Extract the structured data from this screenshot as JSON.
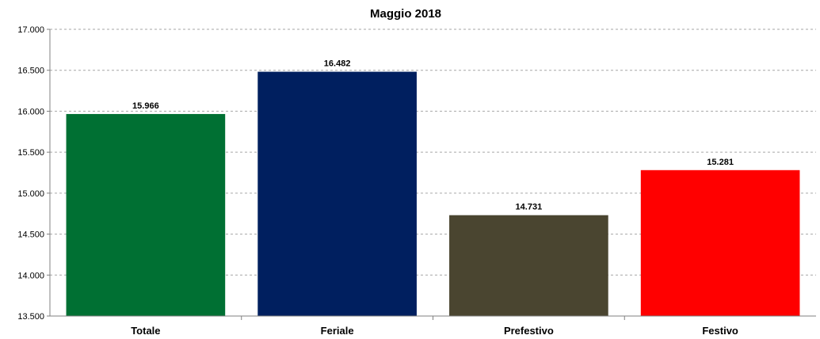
{
  "chart_data": {
    "type": "bar",
    "title": "Maggio 2018",
    "categories": [
      "Totale",
      "Feriale",
      "Prefestivo",
      "Festivo"
    ],
    "values": [
      15966,
      16482,
      14731,
      15281
    ],
    "value_labels": [
      "15.966",
      "16.482",
      "14.731",
      "15.281"
    ],
    "colors": [
      "#007033",
      "#001f5f",
      "#4a4530",
      "#ff0000"
    ],
    "ylim": [
      13500,
      17000
    ],
    "y_ticks": [
      13500,
      14000,
      14500,
      15000,
      15500,
      16000,
      16500,
      17000
    ],
    "y_tick_labels": [
      "13.500",
      "14.000",
      "14.500",
      "15.000",
      "15.500",
      "16.000",
      "16.500",
      "17.000"
    ],
    "grid": true,
    "legend": false,
    "xlabel": "",
    "ylabel": ""
  }
}
